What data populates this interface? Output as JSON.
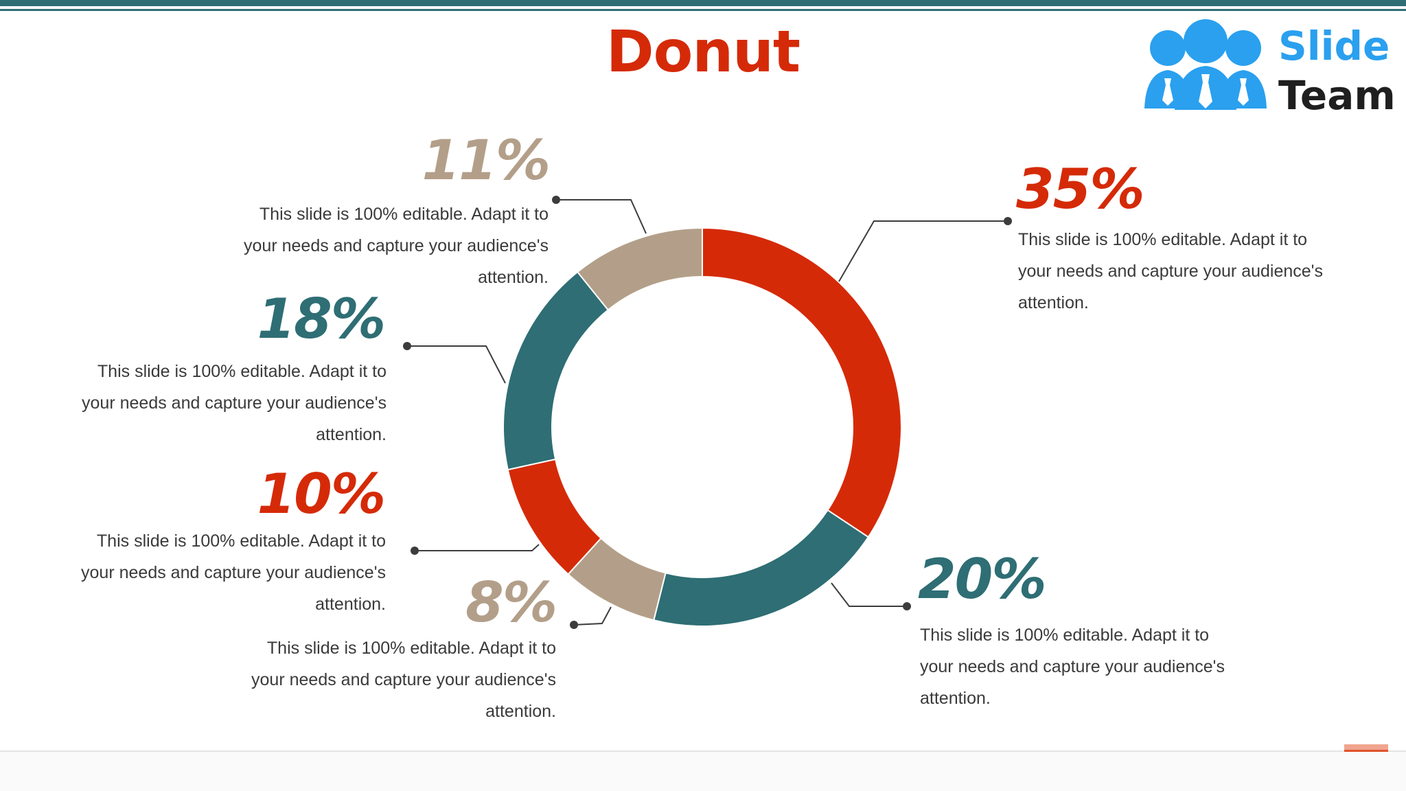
{
  "title": "Donut",
  "logo": {
    "word1": "Slide",
    "word2": "Team",
    "icon": "people-group-icon"
  },
  "colors": {
    "red": "#d52a08",
    "teal": "#2e6e74",
    "tan": "#b39f89"
  },
  "chart_data": {
    "type": "pie",
    "variant": "donut",
    "segments": [
      {
        "label": "35%",
        "value": 35,
        "color": "#d52a08",
        "text": "This slide is 100% editable. Adapt it to your needs and capture your audience's attention."
      },
      {
        "label": "20%",
        "value": 20,
        "color": "#2e6e74",
        "text": "This slide is 100% editable. Adapt it to your needs and capture your audience's attention."
      },
      {
        "label": "8%",
        "value": 8,
        "color": "#b39f89",
        "text": "This slide is 100% editable. Adapt it to your needs and capture your audience's attention."
      },
      {
        "label": "10%",
        "value": 10,
        "color": "#d52a08",
        "text": "This slide is 100% editable. Adapt it to your needs and capture your audience's attention."
      },
      {
        "label": "18%",
        "value": 18,
        "color": "#2e6e74",
        "text": "This slide is 100% editable. Adapt it to your needs and capture your audience's attention."
      },
      {
        "label": "11%",
        "value": 11,
        "color": "#b39f89",
        "text": "This slide is 100% editable. Adapt it to your needs and capture your audience's attention."
      }
    ]
  }
}
